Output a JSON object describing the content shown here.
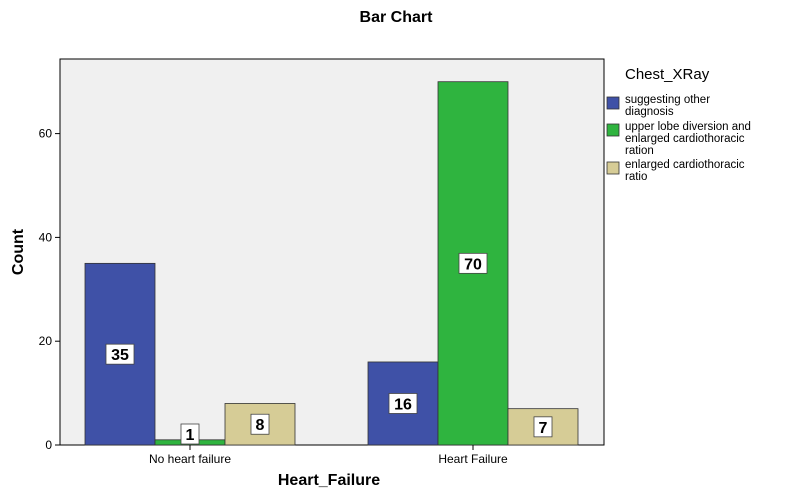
{
  "chart_data": {
    "type": "bar",
    "title": "Bar Chart",
    "xlabel": "Heart_Failure",
    "ylabel": "Count",
    "categories": [
      "No heart failure",
      "Heart Failure"
    ],
    "ylim": [
      0,
      70
    ],
    "yticks": [
      0,
      20,
      40,
      60
    ],
    "grid": false,
    "legend_title": "Chest_XRay",
    "legend_position": "right",
    "series": [
      {
        "name": "suggesting other diagnosis",
        "legend_lines": [
          "suggesting other",
          "diagnosis"
        ],
        "color": "#3f51a7",
        "values": [
          35,
          16
        ],
        "value_labels": [
          "35",
          "16"
        ]
      },
      {
        "name": "upper lobe diversion and enlarged cardiothoracic ration",
        "legend_lines": [
          "upper lobe diversion and",
          "enlarged cardiothoracic",
          "ration"
        ],
        "color": "#2fb43f",
        "values": [
          1,
          70
        ],
        "value_labels": [
          "1",
          "70"
        ]
      },
      {
        "name": "enlarged cardiothoracic ratio",
        "legend_lines": [
          "enlarged cardiothoracic",
          "ratio"
        ],
        "color": "#d6cc96",
        "values": [
          8,
          7
        ],
        "value_labels": [
          "8",
          "7"
        ]
      }
    ],
    "plot_background": "#f0f0f0"
  }
}
